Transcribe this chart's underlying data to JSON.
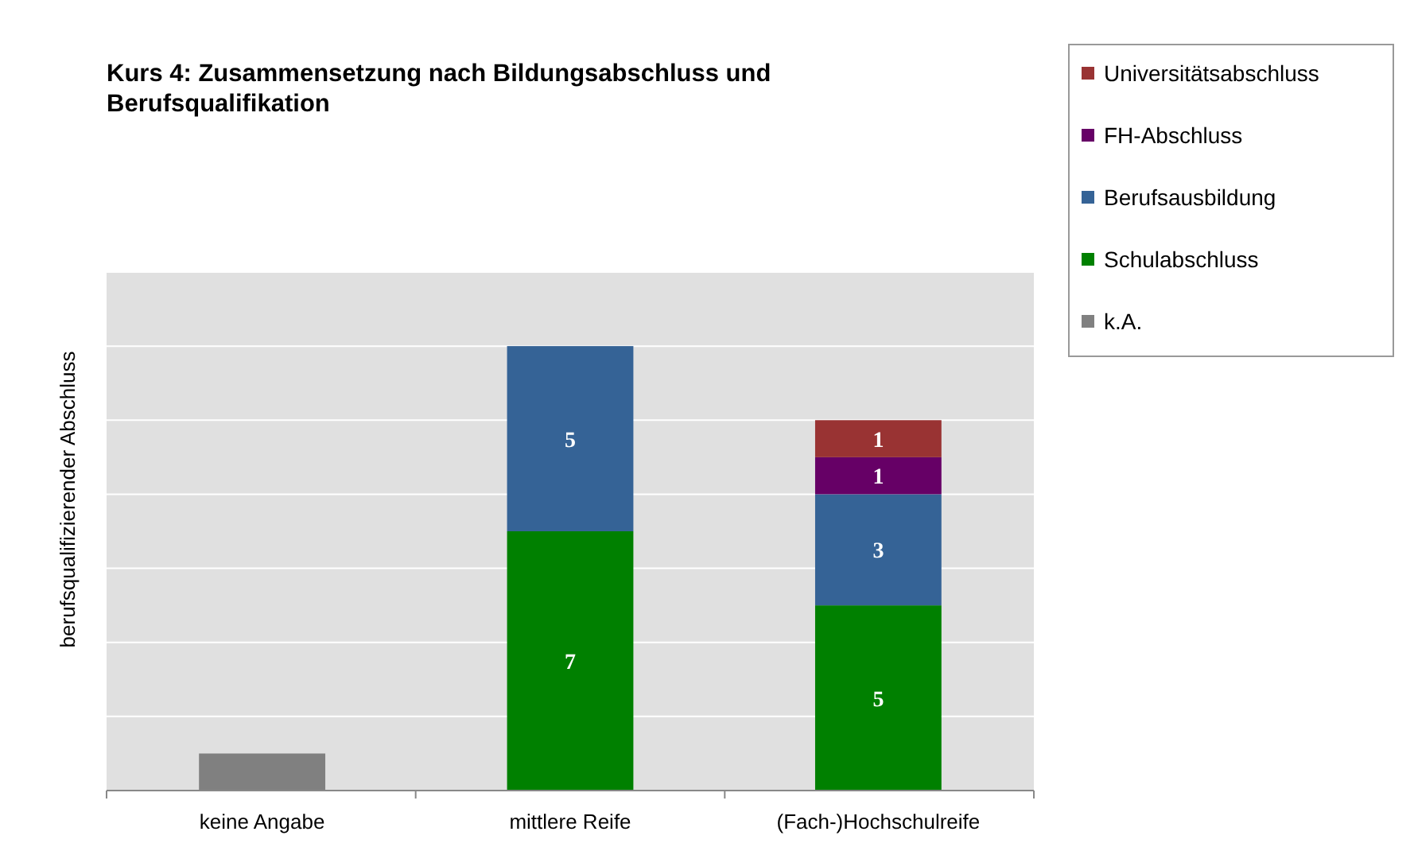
{
  "chart_data": {
    "type": "bar",
    "title": "Kurs 4:  Zusammensetzung nach Bildungsabschluss und Berufsqualifikation",
    "ylabel": "berufsqualifizierender Abschluss",
    "categories": [
      "keine Angabe",
      "mittlere Reife",
      "(Fach-)Hochschulreife"
    ],
    "stacked": true,
    "ylim": [
      0,
      14
    ],
    "yticks": [
      {
        "value": 0,
        "label": null
      },
      {
        "value": 2,
        "label": null
      },
      {
        "value": 4,
        "label": null
      },
      {
        "value": 6,
        "label": null
      },
      {
        "value": 8,
        "label": null
      },
      {
        "value": 10,
        "label": null
      },
      {
        "value": 12,
        "label": null
      },
      {
        "value": 14,
        "label": null
      }
    ],
    "tick_labels": "x",
    "grid": "y",
    "legend": "top right",
    "series": [
      {
        "name": "k.A.",
        "color": "#808080",
        "values": [
          1,
          null,
          null
        ],
        "value_labels": [
          null,
          null,
          null
        ]
      },
      {
        "name": "Schulabschluss",
        "color": "#008000",
        "values": [
          null,
          7,
          5
        ],
        "value_labels": [
          null,
          "7",
          "5"
        ]
      },
      {
        "name": "Berufsausbildung",
        "color": "#356396",
        "values": [
          null,
          5,
          3
        ],
        "value_labels": [
          null,
          "5",
          "3"
        ]
      },
      {
        "name": "FH-Abschluss",
        "color": "#660066",
        "values": [
          null,
          null,
          1
        ],
        "value_labels": [
          null,
          null,
          "1"
        ]
      },
      {
        "name": "Universitätsabschluss",
        "color": "#993333",
        "values": [
          null,
          null,
          1
        ],
        "value_labels": [
          null,
          null,
          "1"
        ]
      }
    ]
  }
}
